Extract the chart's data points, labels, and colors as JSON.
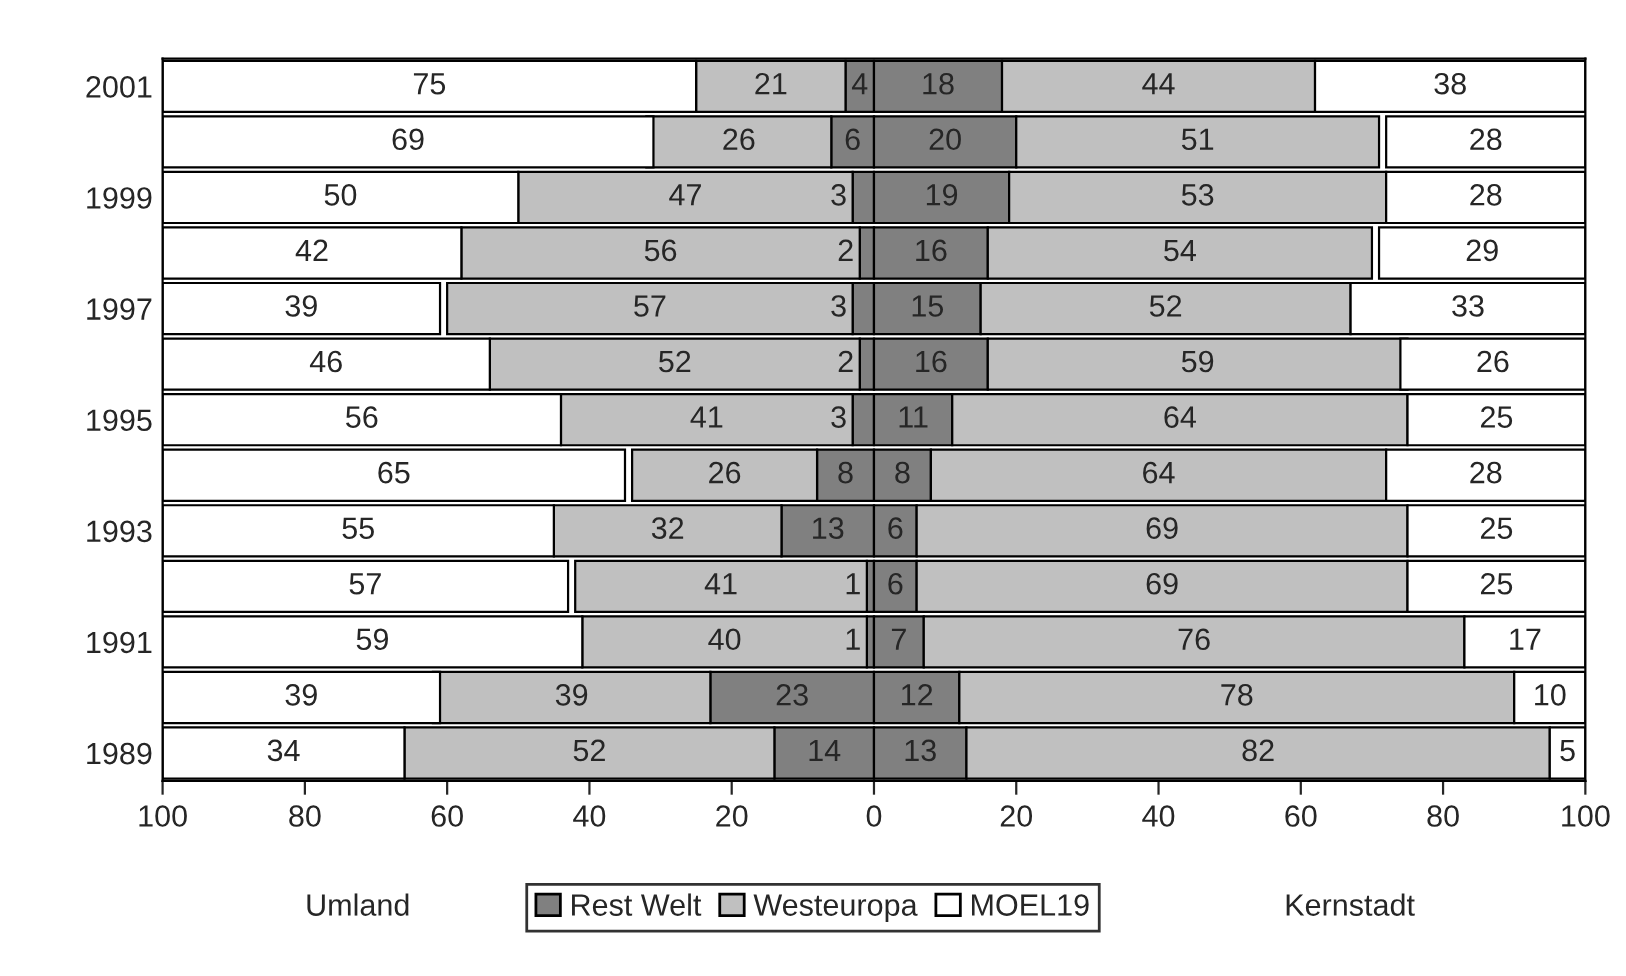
{
  "chart_data": {
    "type": "bar",
    "orientation": "horizontal",
    "categories": [
      "2001",
      null,
      "1999",
      null,
      "1997",
      null,
      "1995",
      null,
      "1993",
      null,
      "1991",
      null,
      "1989"
    ],
    "series": [
      {
        "name": "Rest Welt",
        "color": "#808080",
        "values": [
          4,
          6,
          3,
          2,
          3,
          2,
          3,
          8,
          13,
          1,
          1,
          23,
          14
        ],
        "base": [
          -4,
          -6,
          -3,
          -2,
          -3,
          -2,
          -3,
          -8,
          -13,
          -1,
          -1,
          -23,
          -14
        ]
      },
      {
        "name": "Westeuropa",
        "color": "#c0c0c0",
        "values": [
          21,
          26,
          47,
          56,
          57,
          52,
          41,
          26,
          32,
          41,
          40,
          39,
          52
        ],
        "base": [
          -25,
          -32,
          -50,
          -58,
          -60,
          -54,
          -44,
          -34,
          -45,
          -42,
          -41,
          -62,
          -66
        ]
      },
      {
        "name": "MOEL19",
        "color": "#ffffff",
        "values": [
          75,
          69,
          50,
          42,
          39,
          46,
          56,
          65,
          55,
          57,
          59,
          39,
          34
        ],
        "base": [
          -100,
          -100,
          -100,
          -100,
          -100,
          -100,
          -100,
          -100,
          -100,
          -100,
          -100,
          -100,
          -100
        ]
      },
      {
        "color": "#808080",
        "values": [
          18,
          20,
          19,
          16,
          15,
          16,
          11,
          8,
          6,
          6,
          7,
          12,
          13
        ],
        "base": [
          0,
          0,
          0,
          0,
          0,
          0,
          0,
          0,
          0,
          0,
          0,
          0,
          0
        ]
      },
      {
        "color": "#c0c0c0",
        "values": [
          44,
          51,
          53,
          54,
          52,
          59,
          64,
          64,
          69,
          69,
          76,
          78,
          82
        ],
        "base": [
          18,
          20,
          19,
          16,
          15,
          16,
          11,
          8,
          6,
          6,
          7,
          12,
          13
        ]
      },
      {
        "color": "#ffffff",
        "values": [
          38,
          28,
          28,
          29,
          33,
          26,
          25,
          28,
          25,
          25,
          17,
          10,
          5
        ],
        "base": [
          62,
          72,
          72,
          71,
          67,
          74,
          75,
          72,
          75,
          75,
          83,
          90,
          95
        ]
      }
    ],
    "xlim": [
      -100,
      100
    ],
    "xticks": [
      {
        "value": -100,
        "label": "100"
      },
      {
        "value": -80,
        "label": "80"
      },
      {
        "value": -60,
        "label": "60"
      },
      {
        "value": -40,
        "label": "40"
      },
      {
        "value": -20,
        "label": "20"
      },
      0,
      20,
      40,
      60,
      80,
      100
    ],
    "data_labels": true,
    "annotations": [
      "Umland",
      "Kernstadt"
    ],
    "legend": "bottom"
  }
}
